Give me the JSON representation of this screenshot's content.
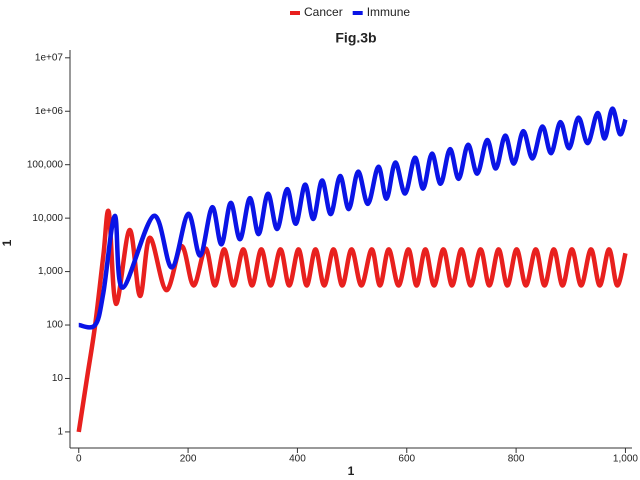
{
  "chart_data": {
    "type": "line",
    "title": "Fig.3b",
    "x_label": "1",
    "y_label": "1",
    "log_y": true,
    "grid": false,
    "xlim": [
      -16,
      1012
    ],
    "ylim": [
      0.5,
      14000000
    ],
    "xticks": [
      0,
      200,
      400,
      600,
      800,
      {
        "value": 1000,
        "label": "1,000"
      }
    ],
    "yticks": [
      1,
      10,
      100,
      {
        "value": 1000,
        "label": "1,000"
      },
      {
        "value": 10000,
        "label": "10,000"
      },
      {
        "value": 100000,
        "label": "100,000"
      },
      {
        "value": 1000000,
        "label": "1e+06"
      },
      {
        "value": 10000000,
        "label": "1e+07"
      }
    ],
    "series": [
      {
        "name": "Cancer",
        "color": "#e8201e",
        "x": [
          0,
          15,
          30,
          45,
          55,
          68,
          93,
          112,
          130,
          160,
          188,
          210,
          232,
          249,
          266,
          283,
          301,
          317,
          334,
          351,
          369,
          385,
          402,
          417,
          433,
          449,
          466,
          482,
          499,
          517,
          536,
          551,
          567,
          585,
          603,
          618,
          634,
          650,
          667,
          683,
          700,
          717,
          735,
          751,
          768,
          784,
          801,
          818,
          836,
          852,
          869,
          885,
          902,
          919,
          937,
          953,
          970,
          985,
          1000
        ],
        "values": [
          1,
          10,
          100,
          2000,
          13000,
          250,
          6000,
          350,
          4300,
          450,
          3000,
          550,
          2700,
          550,
          2600,
          550,
          2600,
          550,
          2600,
          550,
          2600,
          550,
          2600,
          550,
          2600,
          550,
          2600,
          550,
          2600,
          550,
          2600,
          550,
          2600,
          550,
          2600,
          550,
          2600,
          550,
          2600,
          550,
          2600,
          550,
          2600,
          550,
          2600,
          550,
          2600,
          550,
          2600,
          550,
          2600,
          550,
          2600,
          550,
          2600,
          550,
          2600,
          550,
          2200
        ]
      },
      {
        "name": "Immune",
        "color": "#0a14e6",
        "x": [
          0,
          30,
          45,
          66,
          80,
          137,
          170,
          200,
          222,
          244,
          261,
          278,
          295,
          313,
          329,
          346,
          363,
          381,
          397,
          414,
          429,
          445,
          461,
          478,
          494,
          511,
          529,
          548,
          563,
          579,
          597,
          615,
          630,
          646,
          662,
          679,
          695,
          712,
          729,
          747,
          763,
          780,
          796,
          813,
          830,
          848,
          864,
          881,
          897,
          914,
          931,
          949,
          962,
          976,
          990,
          1000
        ],
        "values": [
          100,
          100,
          400,
          11000,
          500,
          11000,
          1200,
          12000,
          2000,
          16000,
          3240,
          19300,
          4040,
          23600,
          5040,
          28600,
          6280,
          34900,
          7850,
          42300,
          9670,
          50600,
          11900,
          61200,
          14800,
          74000,
          18500,
          91600,
          23100,
          110000,
          28900,
          135000,
          35700,
          161000,
          44000,
          195000,
          54500,
          236000,
          68000,
          289000,
          84900,
          350000,
          105000,
          424000,
          131000,
          518000,
          164000,
          627000,
          203000,
          759000,
          253000,
          928000,
          310000,
          1120000,
          372000,
          700000
        ]
      }
    ]
  }
}
